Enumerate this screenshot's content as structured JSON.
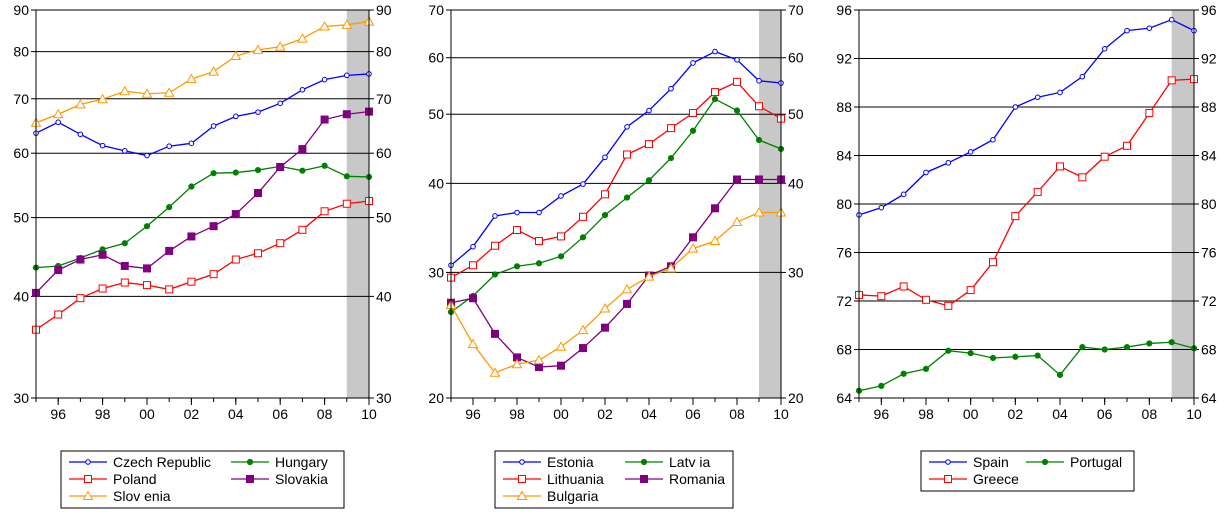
{
  "colors": {
    "blue": "#0000ff",
    "red": "#ff0000",
    "green": "#008000",
    "purple": "#800080",
    "orange": "#ff9900",
    "shade": "#c8c8c8",
    "grid": "#000000"
  },
  "chart_data": [
    {
      "type": "line",
      "scale": "log",
      "ylim": [
        30,
        90
      ],
      "yticks": [
        30,
        40,
        50,
        60,
        70,
        80,
        90
      ],
      "x": [
        1995,
        1996,
        1997,
        1998,
        1999,
        2000,
        2001,
        2002,
        2003,
        2004,
        2005,
        2006,
        2007,
        2008,
        2009,
        2010
      ],
      "xtick_values": [
        1996,
        1998,
        2000,
        2002,
        2004,
        2006,
        2008,
        2010
      ],
      "xtick_labels": [
        "96",
        "98",
        "00",
        "02",
        "04",
        "06",
        "08",
        "10"
      ],
      "shaded": [
        2009,
        2010
      ],
      "grid": true,
      "legend": {
        "position": "bottom",
        "columns": 2
      },
      "series": [
        {
          "name": "Czech Republic",
          "color": "blue",
          "marker": "circle",
          "values": [
            63.5,
            65.5,
            63.3,
            61.3,
            60.4,
            59.6,
            61.2,
            61.7,
            64.8,
            66.6,
            67.4,
            69.1,
            71.8,
            73.9,
            74.8,
            75.1
          ]
        },
        {
          "name": "Hungary",
          "color": "green",
          "marker": "dot",
          "values": [
            43.4,
            43.6,
            44.6,
            45.7,
            46.5,
            48.8,
            51.5,
            54.6,
            56.7,
            56.8,
            57.2,
            57.8,
            57.1,
            57.9,
            56.2,
            56.1
          ]
        },
        {
          "name": "Poland",
          "color": "red",
          "marker": "square",
          "values": [
            36.4,
            38.0,
            39.8,
            40.9,
            41.6,
            41.3,
            40.8,
            41.7,
            42.6,
            44.4,
            45.2,
            46.5,
            48.3,
            50.9,
            52.0,
            52.4
          ]
        },
        {
          "name": "Slovakia",
          "color": "purple",
          "marker": "filled-square",
          "values": [
            40.4,
            43.1,
            44.4,
            45.0,
            43.6,
            43.3,
            45.5,
            47.4,
            48.8,
            50.5,
            53.6,
            57.7,
            60.7,
            66.0,
            67.0,
            67.5
          ]
        },
        {
          "name": "Slov enia",
          "color": "orange",
          "marker": "triangle",
          "values": [
            65.4,
            67.0,
            68.9,
            69.9,
            71.5,
            71.0,
            71.2,
            74.0,
            75.6,
            79.0,
            80.4,
            81.1,
            83.0,
            85.9,
            86.3,
            87.1
          ]
        }
      ]
    },
    {
      "type": "line",
      "scale": "log",
      "ylim": [
        20,
        70
      ],
      "yticks": [
        20,
        30,
        40,
        50,
        60,
        70
      ],
      "x": [
        1995,
        1996,
        1997,
        1998,
        1999,
        2000,
        2001,
        2002,
        2003,
        2004,
        2005,
        2006,
        2007,
        2008,
        2009,
        2010
      ],
      "xtick_values": [
        1996,
        1998,
        2000,
        2002,
        2004,
        2006,
        2008,
        2010
      ],
      "xtick_labels": [
        "96",
        "98",
        "00",
        "02",
        "04",
        "06",
        "08",
        "10"
      ],
      "shaded": [
        2009,
        2010
      ],
      "grid": true,
      "legend": {
        "position": "bottom",
        "columns": 2
      },
      "series": [
        {
          "name": "Estonia",
          "color": "blue",
          "marker": "circle",
          "values": [
            30.7,
            32.6,
            36.0,
            36.4,
            36.4,
            38.4,
            39.9,
            43.5,
            48.0,
            50.6,
            54.3,
            59.0,
            61.2,
            59.6,
            55.7,
            55.3
          ]
        },
        {
          "name": "Latv ia",
          "color": "green",
          "marker": "dot",
          "values": [
            26.4,
            27.8,
            29.8,
            30.6,
            30.9,
            31.6,
            33.6,
            36.1,
            38.2,
            40.4,
            43.4,
            47.4,
            52.5,
            50.6,
            46.0,
            44.7
          ]
        },
        {
          "name": "Lithuania",
          "color": "red",
          "marker": "square",
          "values": [
            29.5,
            30.7,
            32.7,
            34.4,
            33.2,
            33.7,
            35.9,
            38.6,
            43.9,
            45.4,
            47.8,
            50.2,
            53.7,
            55.5,
            51.3,
            49.3
          ]
        },
        {
          "name": "Romania",
          "color": "purple",
          "marker": "filled-square",
          "values": [
            27.2,
            27.6,
            24.6,
            22.8,
            22.1,
            22.2,
            23.5,
            25.1,
            27.1,
            29.7,
            30.6,
            33.6,
            36.9,
            40.5,
            40.5,
            40.5
          ]
        },
        {
          "name": "Bulgaria",
          "color": "orange",
          "marker": "triangle",
          "values": [
            27.0,
            23.8,
            21.7,
            22.3,
            22.6,
            23.6,
            24.9,
            26.7,
            28.4,
            29.6,
            30.4,
            32.4,
            33.2,
            35.3,
            36.4,
            36.4
          ]
        }
      ]
    },
    {
      "type": "line",
      "scale": "linear",
      "ylim": [
        64,
        96
      ],
      "yticks": [
        64,
        68,
        72,
        76,
        80,
        84,
        88,
        92,
        96
      ],
      "x": [
        1995,
        1996,
        1997,
        1998,
        1999,
        2000,
        2001,
        2002,
        2003,
        2004,
        2005,
        2006,
        2007,
        2008,
        2009,
        2010
      ],
      "xtick_values": [
        1996,
        1998,
        2000,
        2002,
        2004,
        2006,
        2008,
        2010
      ],
      "xtick_labels": [
        "96",
        "98",
        "00",
        "02",
        "04",
        "06",
        "08",
        "10"
      ],
      "shaded": [
        2009,
        2010
      ],
      "grid": true,
      "legend": {
        "position": "bottom",
        "columns": 2
      },
      "series": [
        {
          "name": "Spain",
          "color": "blue",
          "marker": "circle",
          "values": [
            79.1,
            79.7,
            80.8,
            82.6,
            83.4,
            84.3,
            85.3,
            88.0,
            88.8,
            89.2,
            90.5,
            92.8,
            94.3,
            94.5,
            95.2,
            94.3
          ]
        },
        {
          "name": "Portugal",
          "color": "green",
          "marker": "dot",
          "values": [
            64.6,
            65.0,
            66.0,
            66.4,
            67.9,
            67.7,
            67.3,
            67.4,
            67.5,
            65.9,
            68.2,
            68.0,
            68.2,
            68.5,
            68.6,
            68.1
          ]
        },
        {
          "name": "Greece",
          "color": "red",
          "marker": "square",
          "values": [
            72.5,
            72.4,
            73.2,
            72.1,
            71.6,
            72.9,
            75.2,
            79.0,
            81.0,
            83.1,
            82.2,
            83.9,
            84.8,
            87.5,
            90.2,
            90.3
          ]
        }
      ]
    }
  ]
}
